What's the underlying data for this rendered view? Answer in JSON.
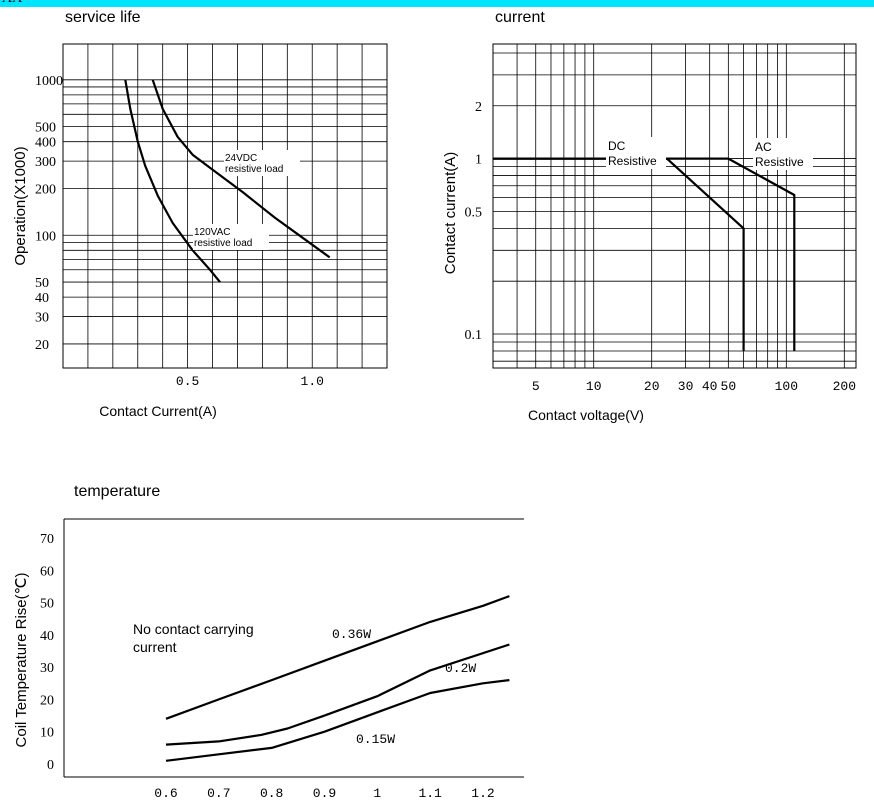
{
  "header": {
    "text": "AA",
    "color": "#00e5ff"
  },
  "chart_data": [
    {
      "type": "line",
      "title": "service life",
      "xlabel": "Contact Current(A)",
      "ylabel": "Operation(X1000)",
      "x_ticks": [
        "0.5",
        "1.0"
      ],
      "y_ticks": [
        "1000",
        "500",
        "400",
        "300",
        "200",
        "100",
        "50",
        "40",
        "30",
        "20"
      ],
      "y_scale": "log",
      "series": [
        {
          "name": "24VDC resistive load",
          "label_lines": [
            "24VDC",
            "resistive load"
          ],
          "x": [
            0.36,
            0.4,
            0.46,
            0.52,
            0.62,
            0.72,
            0.85,
            1.0,
            1.07
          ],
          "y": [
            1000,
            650,
            430,
            330,
            250,
            190,
            130,
            87,
            72
          ]
        },
        {
          "name": "120VAC resistive load",
          "label_lines": [
            "120VAC",
            "resistive load"
          ],
          "x": [
            0.25,
            0.27,
            0.3,
            0.33,
            0.38,
            0.44,
            0.52,
            0.59,
            0.63
          ],
          "y": [
            1000,
            650,
            400,
            280,
            180,
            120,
            80,
            60,
            50
          ]
        }
      ]
    },
    {
      "type": "line",
      "title": "current",
      "xlabel": "Contact voltage(V)",
      "ylabel": "Contact current(A)",
      "x_ticks": [
        "5",
        "10",
        "20",
        "30",
        "40",
        "50",
        "100",
        "200"
      ],
      "y_ticks": [
        "2",
        "1",
        "0.5",
        "0.1"
      ],
      "x_scale": "log",
      "y_scale": "log",
      "series": [
        {
          "name": "DC Resistive",
          "label_lines": [
            "DC",
            "Resistive"
          ],
          "x": [
            3,
            24,
            60,
            60
          ],
          "y": [
            1,
            1,
            0.4,
            0.08
          ]
        },
        {
          "name": "AC Resistive",
          "label_lines": [
            "AC",
            "Resistive"
          ],
          "x": [
            3,
            50,
            110,
            110
          ],
          "y": [
            1,
            1,
            0.62,
            0.08
          ]
        }
      ]
    },
    {
      "type": "line",
      "title": "temperature",
      "xlabel": "",
      "ylabel": "Coil Temperature Rise(℃)",
      "x_ticks": [
        "0.6",
        "0.7",
        "0.8",
        "0.9",
        "1",
        "1.1",
        "1.2"
      ],
      "y_ticks": [
        "70",
        "60",
        "50",
        "40",
        "30",
        "20",
        "10",
        "0"
      ],
      "ylim": [
        0,
        70
      ],
      "annotation": [
        "No contact carrying",
        "current"
      ],
      "series": [
        {
          "name": "0.36W",
          "x": [
            0.6,
            0.7,
            0.8,
            0.9,
            1.0,
            1.1,
            1.2,
            1.25
          ],
          "y": [
            14,
            20,
            26,
            32,
            38,
            44,
            49,
            52
          ]
        },
        {
          "name": "0.2W",
          "x": [
            0.6,
            0.7,
            0.78,
            0.83,
            0.9,
            1.0,
            1.1,
            1.25
          ],
          "y": [
            6,
            7,
            9,
            11,
            15,
            21,
            29,
            37
          ]
        },
        {
          "name": "0.15W",
          "x": [
            0.6,
            0.7,
            0.8,
            0.9,
            1.0,
            1.1,
            1.2,
            1.25
          ],
          "y": [
            1,
            3,
            5,
            10,
            16,
            22,
            25,
            26
          ]
        }
      ]
    }
  ]
}
